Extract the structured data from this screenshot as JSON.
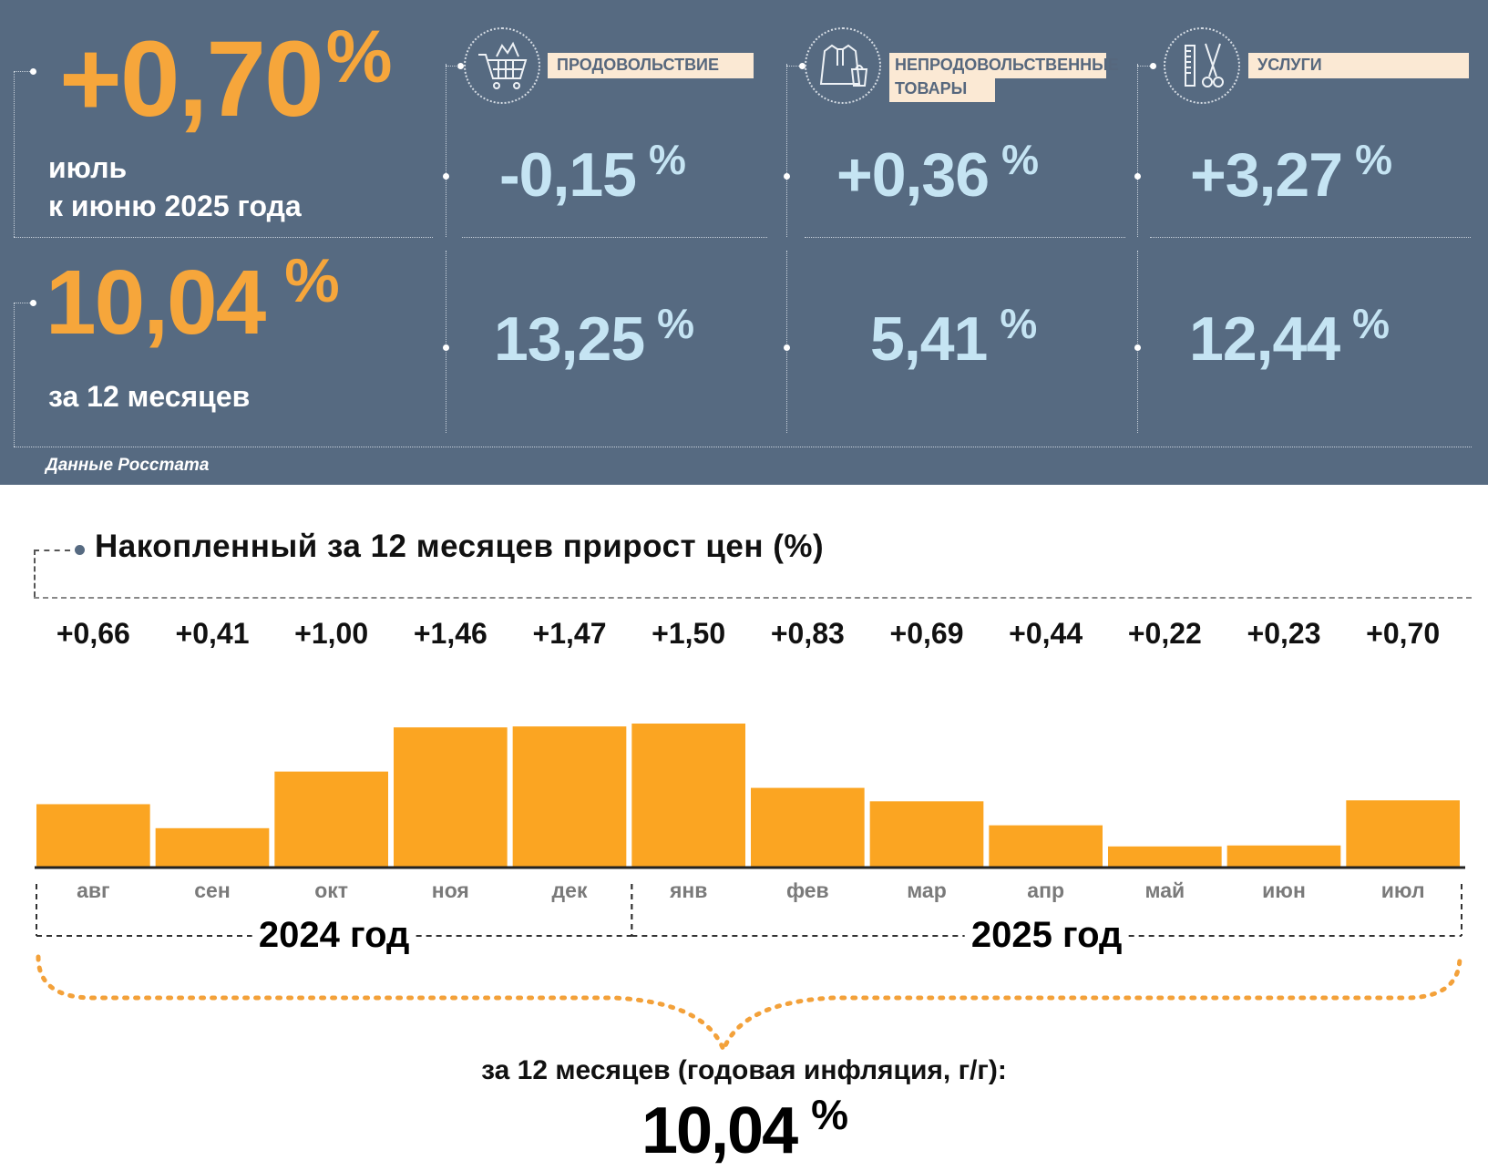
{
  "summary": {
    "monthly_value": "+0,70",
    "monthly_unit": "%",
    "monthly_caption_1": "июль",
    "monthly_caption_2": "к июню 2025 года",
    "annual_value": "10,04",
    "annual_unit": "%",
    "annual_caption": "за 12 месяцев",
    "source": "Данные Росстата"
  },
  "categories": [
    {
      "label": "ПРОДОВОЛЬСТВИЕ",
      "icon": "shopping-cart-icon",
      "monthly": "-0,15",
      "annual": "13,25",
      "unit": "%"
    },
    {
      "label": "НЕПРОДОВОЛЬСТВЕННЫЕ",
      "label2": "ТОВАРЫ",
      "icon": "clothing-bag-icon",
      "monthly": "+0,36",
      "annual": "5,41",
      "unit": "%"
    },
    {
      "label": "УСЛУГИ",
      "icon": "comb-scissors-icon",
      "monthly": "+3,27",
      "annual": "12,44",
      "unit": "%"
    }
  ],
  "colors": {
    "panel": "#566a81",
    "accent_orange": "#f6a63b",
    "value_light_blue": "#c5e4f3",
    "bar": "#fba522",
    "label_bg": "#fbe9d4"
  },
  "chart_data": {
    "type": "bar",
    "title": "Накопленный за 12 месяцев прирост цен (%)",
    "categories": [
      "авг",
      "сен",
      "окт",
      "ноя",
      "дек",
      "янв",
      "фев",
      "мар",
      "апр",
      "май",
      "июн",
      "июл"
    ],
    "values": [
      0.66,
      0.41,
      1.0,
      1.46,
      1.47,
      1.5,
      0.83,
      0.69,
      0.44,
      0.22,
      0.23,
      0.7
    ],
    "value_labels": [
      "+0,66",
      "+0,41",
      "+1,00",
      "+1,46",
      "+1,47",
      "+1,50",
      "+0,83",
      "+0,69",
      "+0,44",
      "+0,22",
      "+0,23",
      "+0,70"
    ],
    "year_groups": [
      {
        "label": "2024 год",
        "months": 5
      },
      {
        "label": "2025 год",
        "months": 7
      }
    ],
    "total_caption": "за 12 месяцев (годовая инфляция, г/г):",
    "total_value": "10,04",
    "total_unit": "%",
    "ylim": [
      0,
      1.5
    ],
    "grid": false,
    "legend": "none"
  }
}
